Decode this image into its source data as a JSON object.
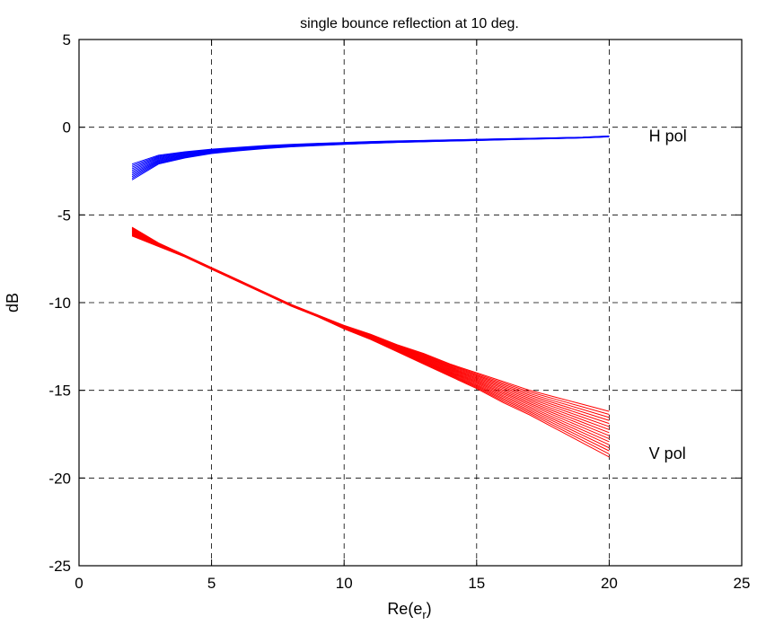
{
  "chart_data": {
    "type": "line",
    "title": "single bounce reflection at 10 deg.",
    "xlabel_base": "Re(e",
    "xlabel_sub": "r",
    "xlabel_close": ")",
    "ylabel": "dB",
    "xlim": [
      0,
      25
    ],
    "ylim": [
      -25,
      5
    ],
    "xticks": [
      0,
      5,
      10,
      15,
      20,
      25
    ],
    "yticks": [
      5,
      0,
      -5,
      -10,
      -15,
      -20,
      -25
    ],
    "grid": true,
    "colors": {
      "H": "#0000ff",
      "V": "#ff0000"
    },
    "x": [
      2,
      3,
      4,
      5,
      6,
      7,
      8,
      9,
      10,
      11,
      12,
      13,
      14,
      15,
      16,
      17,
      18,
      19,
      20
    ],
    "series_groups": [
      {
        "label": "H pol",
        "color": "#0000ff",
        "label_at": [
          21.5,
          -0.8
        ],
        "curve_count": 11,
        "envelope_upper": [
          -2.1,
          -1.6,
          -1.4,
          -1.25,
          -1.15,
          -1.05,
          -0.98,
          -0.92,
          -0.87,
          -0.82,
          -0.78,
          -0.75,
          -0.72,
          -0.69,
          -0.66,
          -0.63,
          -0.6,
          -0.57,
          -0.5
        ],
        "envelope_lower": [
          -3.0,
          -2.1,
          -1.75,
          -1.5,
          -1.35,
          -1.22,
          -1.12,
          -1.05,
          -0.98,
          -0.92,
          -0.87,
          -0.83,
          -0.79,
          -0.76,
          -0.72,
          -0.68,
          -0.65,
          -0.61,
          -0.55
        ]
      },
      {
        "label": "V pol",
        "color": "#ff0000",
        "label_at": [
          21.5,
          -18.9
        ],
        "curve_count": 16,
        "envelope_upper": [
          -5.7,
          -6.6,
          -7.3,
          -8.0,
          -8.7,
          -9.4,
          -10.1,
          -10.7,
          -11.3,
          -11.8,
          -12.4,
          -12.9,
          -13.5,
          -14.0,
          -14.5,
          -15.0,
          -15.4,
          -15.8,
          -16.2
        ],
        "envelope_lower": [
          -6.2,
          -6.8,
          -7.4,
          -8.1,
          -8.8,
          -9.5,
          -10.2,
          -10.8,
          -11.5,
          -12.1,
          -12.8,
          -13.5,
          -14.2,
          -14.9,
          -15.7,
          -16.4,
          -17.2,
          -18.0,
          -18.8
        ]
      }
    ]
  }
}
